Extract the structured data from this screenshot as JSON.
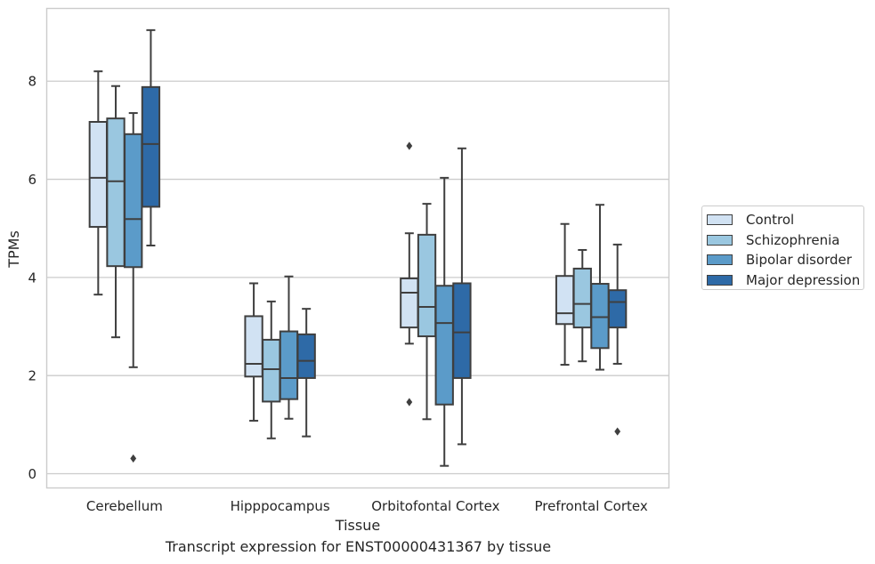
{
  "chart_data": {
    "type": "box",
    "caption": "Transcript expression for ENST00000431367 by tissue",
    "xlabel": "Tissue",
    "ylabel": "TPMs",
    "ylim": [
      -0.25,
      9.5
    ],
    "yticks": [
      0,
      2,
      4,
      6,
      8
    ],
    "grid": "horizontal",
    "legend_position": "right",
    "categories": [
      "Cerebellum",
      "Hipppocampus",
      "Orbitofontal Cortex",
      "Prefrontal Cortex"
    ],
    "series": [
      {
        "name": "Control",
        "color": "#d1e2f3",
        "boxes": [
          {
            "whislo": 3.65,
            "q1": 5.03,
            "med": 6.03,
            "q3": 7.17,
            "whishi": 8.2,
            "fliers": []
          },
          {
            "whislo": 1.08,
            "q1": 1.98,
            "med": 2.24,
            "q3": 3.21,
            "whishi": 3.88,
            "fliers": []
          },
          {
            "whislo": 2.65,
            "q1": 2.98,
            "med": 3.69,
            "q3": 3.98,
            "whishi": 4.9,
            "fliers": [
              6.68,
              1.46
            ]
          },
          {
            "whislo": 2.22,
            "q1": 3.05,
            "med": 3.27,
            "q3": 4.03,
            "whishi": 5.09,
            "fliers": []
          }
        ]
      },
      {
        "name": "Schizophrenia",
        "color": "#9ac7e0",
        "boxes": [
          {
            "whislo": 2.78,
            "q1": 4.23,
            "med": 5.96,
            "q3": 7.24,
            "whishi": 7.9,
            "fliers": []
          },
          {
            "whislo": 0.72,
            "q1": 1.47,
            "med": 2.13,
            "q3": 2.73,
            "whishi": 3.51,
            "fliers": []
          },
          {
            "whislo": 1.11,
            "q1": 2.8,
            "med": 3.4,
            "q3": 4.87,
            "whishi": 5.5,
            "fliers": []
          },
          {
            "whislo": 2.29,
            "q1": 2.98,
            "med": 3.46,
            "q3": 4.18,
            "whishi": 4.56,
            "fliers": []
          }
        ]
      },
      {
        "name": "Bipolar disorder",
        "color": "#5b9bc9",
        "boxes": [
          {
            "whislo": 2.17,
            "q1": 4.21,
            "med": 5.19,
            "q3": 6.92,
            "whishi": 7.35,
            "fliers": [
              0.31
            ]
          },
          {
            "whislo": 1.12,
            "q1": 1.52,
            "med": 1.95,
            "q3": 2.9,
            "whishi": 4.02,
            "fliers": []
          },
          {
            "whislo": 0.16,
            "q1": 1.41,
            "med": 3.07,
            "q3": 3.83,
            "whishi": 6.03,
            "fliers": []
          },
          {
            "whislo": 2.12,
            "q1": 2.56,
            "med": 3.19,
            "q3": 3.87,
            "whishi": 5.48,
            "fliers": []
          }
        ]
      },
      {
        "name": "Major depression",
        "color": "#2e6aa7",
        "boxes": [
          {
            "whislo": 4.65,
            "q1": 5.44,
            "med": 6.72,
            "q3": 7.88,
            "whishi": 9.04,
            "fliers": []
          },
          {
            "whislo": 0.76,
            "q1": 1.95,
            "med": 2.3,
            "q3": 2.84,
            "whishi": 3.36,
            "fliers": []
          },
          {
            "whislo": 0.6,
            "q1": 1.95,
            "med": 2.88,
            "q3": 3.88,
            "whishi": 6.63,
            "fliers": []
          },
          {
            "whislo": 2.24,
            "q1": 2.98,
            "med": 3.5,
            "q3": 3.74,
            "whishi": 4.67,
            "fliers": [
              0.86
            ]
          }
        ]
      }
    ]
  }
}
